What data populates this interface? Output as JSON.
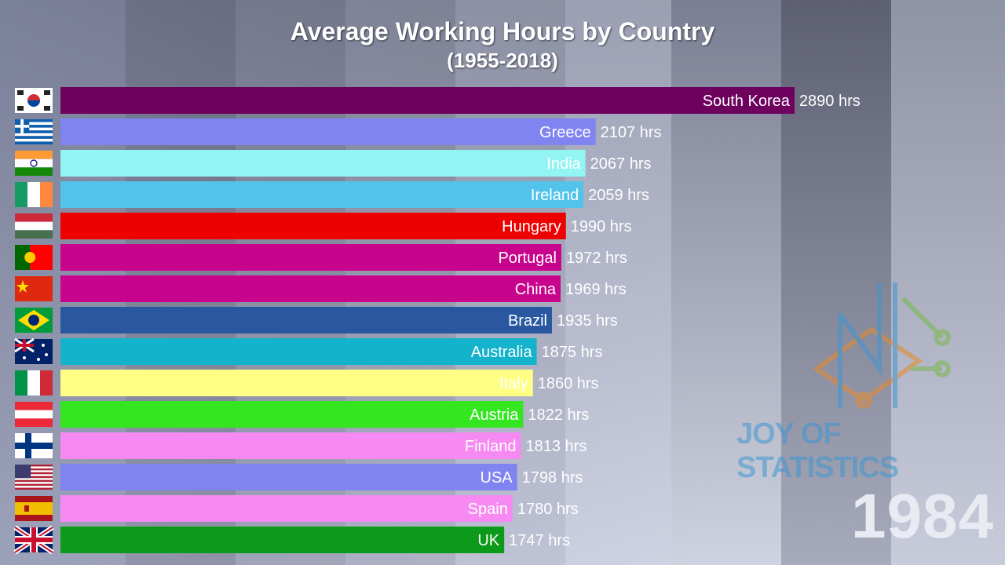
{
  "chart_data": {
    "type": "bar",
    "orientation": "horizontal",
    "title": "Average Working Hours by Country",
    "subtitle": "(1955-2018)",
    "year": "1984",
    "unit": "hrs",
    "xlim": [
      0,
      3000
    ],
    "categories": [
      "South Korea",
      "Greece",
      "India",
      "Ireland",
      "Hungary",
      "Portugal",
      "China",
      "Brazil",
      "Australia",
      "Italy",
      "Austria",
      "Finland",
      "USA",
      "Spain",
      "UK"
    ],
    "values": [
      2890,
      2107,
      2067,
      2059,
      1990,
      1972,
      1969,
      1935,
      1875,
      1860,
      1822,
      1813,
      1798,
      1780,
      1747
    ],
    "colors": [
      "#6e005e",
      "#7f84f0",
      "#93f4f4",
      "#52c3ea",
      "#ee0000",
      "#c8038c",
      "#c8038c",
      "#2a58a0",
      "#12b3cb",
      "#ffff85",
      "#33e620",
      "#f68af2",
      "#7f84f0",
      "#f68af2",
      "#0d9a1a"
    ],
    "label_colors": [
      "#ffffff",
      "#ffffff",
      "#ffffff",
      "#ffffff",
      "#ffffff",
      "#ffffff",
      "#ffffff",
      "#ffffff",
      "#ffffff",
      "#ffffff",
      "#ffffff",
      "#ffffff",
      "#ffffff",
      "#ffffff",
      "#ffffff"
    ]
  },
  "watermark": {
    "text": "JOY OF STATISTICS"
  }
}
